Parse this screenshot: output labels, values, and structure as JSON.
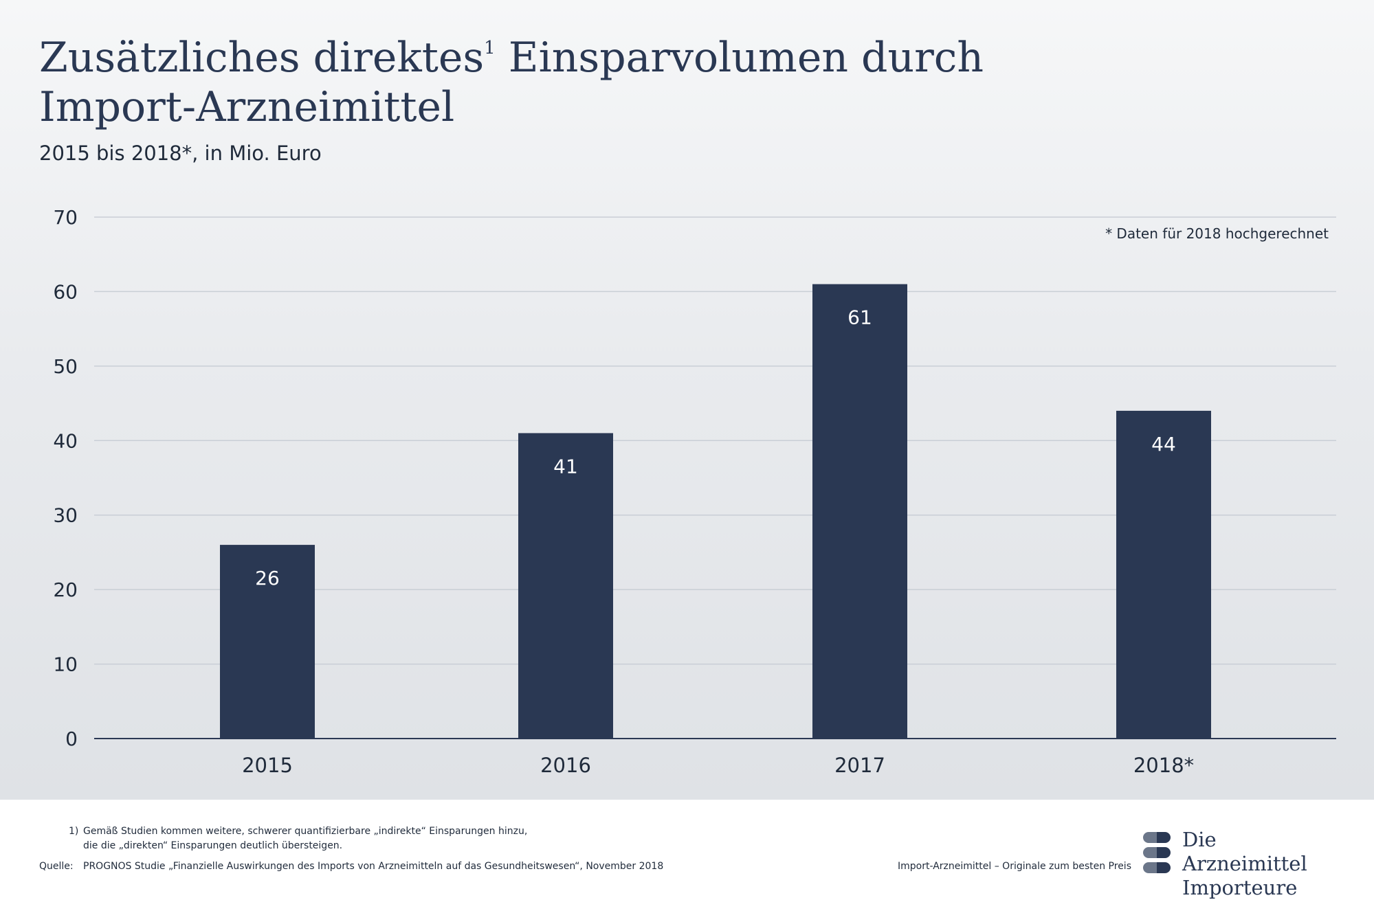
{
  "header": {
    "title_part1": "Zusätzliches direktes",
    "title_sup": "1",
    "title_part2": " Einsparvolumen durch Import-Arzneimittel",
    "subtitle": "2015 bis 2018*, in Mio. Euro",
    "note": "* Daten für 2018 hochgerechnet"
  },
  "chart_data": {
    "type": "bar",
    "title": "Zusätzliches direktes¹ Einsparvolumen durch Import-Arzneimittel",
    "subtitle": "2015 bis 2018*, in Mio. Euro",
    "categories": [
      "2015",
      "2016",
      "2017",
      "2018*"
    ],
    "values": [
      26,
      41,
      61,
      44
    ],
    "value_labels": [
      "26",
      "41",
      "61",
      "44"
    ],
    "ylim": [
      0,
      70
    ],
    "yticks": [
      0,
      10,
      20,
      30,
      40,
      50,
      60,
      70
    ],
    "grid": true,
    "bar_color": "#2a3853",
    "label_color": "#ffffff"
  },
  "footer": {
    "footnote_number": "1)",
    "footnote_line1": "Gemäß Studien kommen weitere, schwerer quantifizierbare „indirekte“ Einsparungen hinzu,",
    "footnote_line2": "die die „direkten“ Einsparungen deutlich übersteigen.",
    "source_label": "Quelle:",
    "source_text": "PROGNOS Studie „Finanzielle Auswirkungen des Imports von Arzneimitteln auf das Gesundheitswesen“, November 2018",
    "tagline": "Import-Arzneimittel – Originale zum besten Preis"
  },
  "logo": {
    "line1": "Die Arzneimittel",
    "line2": "Importeure",
    "icon": "pill-stack-icon",
    "colors": {
      "light": "#6b7689",
      "dark": "#2a3853"
    }
  }
}
